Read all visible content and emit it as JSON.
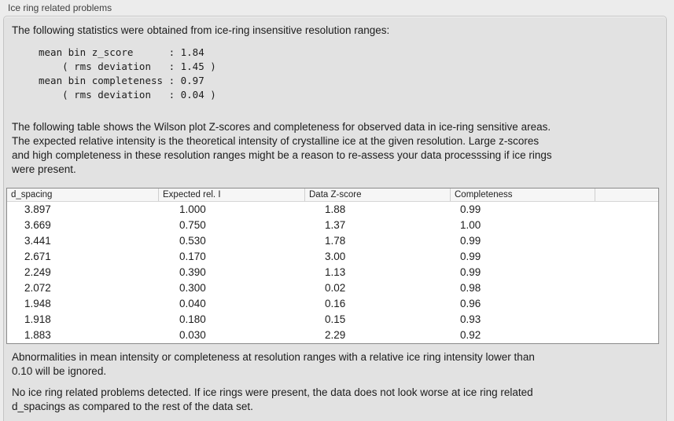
{
  "colors": {
    "window-bg": "#ececec",
    "box-bg": "#e2e2e2",
    "box-border": "#c5c5c5",
    "table-bg": "#ffffff",
    "table-border": "#8a8a8a",
    "header-bg": "#f6f6f6"
  },
  "groupbox": {
    "label": "Ice ring related problems"
  },
  "intro": "The following statistics were obtained from ice-ring insensitive resolution ranges:",
  "stats_block": "mean bin z_score      : 1.84\n    ( rms deviation   : 1.45 )\nmean bin completeness : 0.97\n    ( rms deviation   : 0.04 )",
  "stats": {
    "mean_bin_z_score": "1.84",
    "z_score_rms_deviation": "1.45",
    "mean_bin_completeness": "0.97",
    "completeness_rms_deviation": "0.04"
  },
  "table_description": "The following table shows the Wilson plot Z-scores and completeness for observed data in ice-ring sensitive areas.\nThe expected relative intensity is the theoretical intensity of crystalline ice at the given resolution. Large z-scores\nand high completeness in these resolution ranges might be a reason to re-assess your data processsing if ice rings\nwere present.",
  "table": {
    "headers": [
      "d_spacing",
      "Expected rel. I",
      "Data Z-score",
      "Completeness",
      ""
    ],
    "rows": [
      [
        "3.897",
        "1.000",
        "1.88",
        "0.99"
      ],
      [
        "3.669",
        "0.750",
        "1.37",
        "1.00"
      ],
      [
        "3.441",
        "0.530",
        "1.78",
        "0.99"
      ],
      [
        "2.671",
        "0.170",
        "3.00",
        "0.99"
      ],
      [
        "2.249",
        "0.390",
        "1.13",
        "0.99"
      ],
      [
        "2.072",
        "0.300",
        "0.02",
        "0.98"
      ],
      [
        "1.948",
        "0.040",
        "0.16",
        "0.96"
      ],
      [
        "1.918",
        "0.180",
        "0.15",
        "0.93"
      ],
      [
        "1.883",
        "0.030",
        "2.29",
        "0.92"
      ]
    ]
  },
  "ignore_note": "Abnormalities in mean intensity or completeness at resolution ranges with a relative ice ring intensity lower than\n0.10 will be ignored.",
  "conclusion": "No ice ring related problems detected. If ice rings were present, the data does not look worse at ice ring related\nd_spacings as compared to the rest of the data set."
}
